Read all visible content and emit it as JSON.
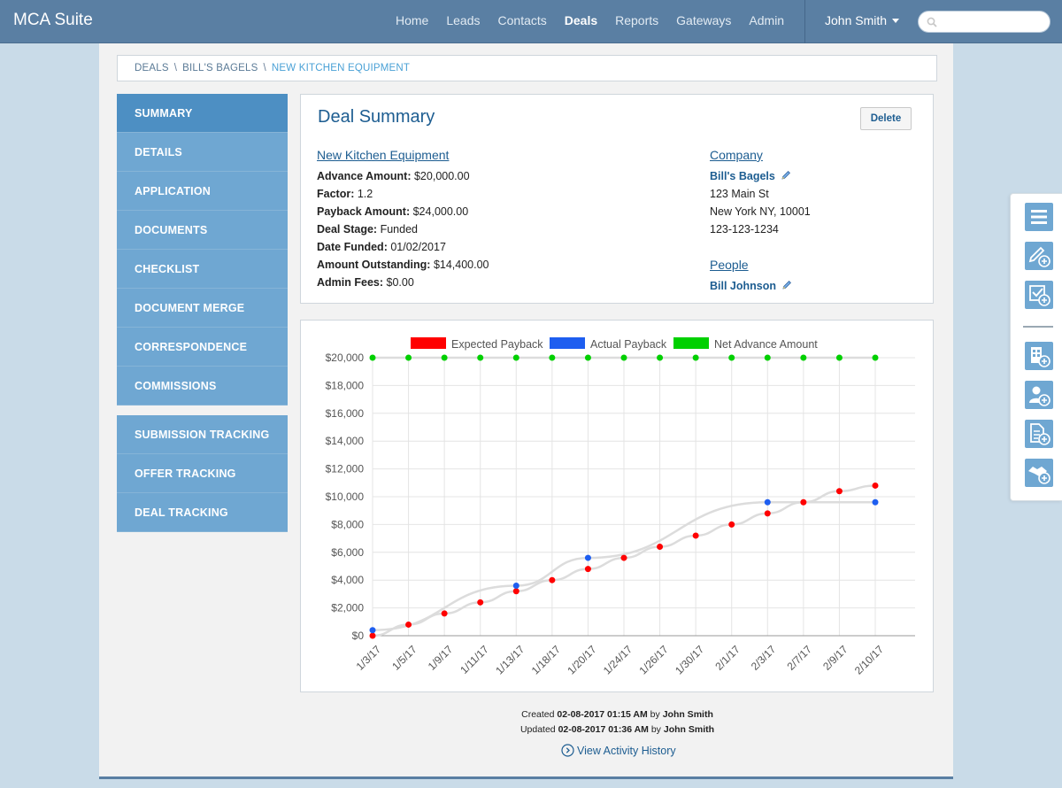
{
  "app": {
    "title": "MCA Suite"
  },
  "nav": {
    "items": [
      "Home",
      "Leads",
      "Contacts",
      "Deals",
      "Reports",
      "Gateways",
      "Admin"
    ],
    "active": "Deals",
    "user": "John Smith",
    "search_placeholder": ""
  },
  "breadcrumb": {
    "items": [
      "DEALS",
      "BILL'S BAGELS",
      "NEW KITCHEN EQUIPMENT"
    ],
    "separator": "\\"
  },
  "sidebar": {
    "group1": [
      "SUMMARY",
      "DETAILS",
      "APPLICATION",
      "DOCUMENTS",
      "CHECKLIST",
      "DOCUMENT MERGE",
      "CORRESPONDENCE",
      "COMMISSIONS"
    ],
    "group2": [
      "SUBMISSION TRACKING",
      "OFFER TRACKING",
      "DEAL TRACKING"
    ],
    "active": "SUMMARY"
  },
  "summary": {
    "title": "Deal Summary",
    "delete_label": "Delete",
    "deal_name": "New Kitchen Equipment",
    "fields": [
      {
        "label": "Advance Amount:",
        "value": "$20,000.00"
      },
      {
        "label": "Factor:",
        "value": "1.2"
      },
      {
        "label": "Payback Amount:",
        "value": "$24,000.00"
      },
      {
        "label": "Deal Stage:",
        "value": "Funded"
      },
      {
        "label": "Date Funded:",
        "value": "01/02/2017"
      },
      {
        "label": "Amount Outstanding:",
        "value": "$14,400.00"
      },
      {
        "label": "Admin Fees:",
        "value": "$0.00"
      }
    ],
    "company_heading": "Company",
    "company_name": "Bill's Bagels",
    "company_address1": "123 Main St",
    "company_address2": "New York NY, 10001",
    "company_phone": "123-123-1234",
    "people_heading": "People",
    "person_name": "Bill Johnson"
  },
  "chart_data": {
    "type": "line",
    "title": "",
    "xlabel": "",
    "ylabel": "",
    "categories": [
      "1/3/17",
      "1/5/17",
      "1/9/17",
      "1/11/17",
      "1/13/17",
      "1/18/17",
      "1/20/17",
      "1/24/17",
      "1/26/17",
      "1/30/17",
      "2/1/17",
      "2/3/17",
      "2/7/17",
      "2/9/17",
      "2/10/17"
    ],
    "ylim": [
      0,
      20000
    ],
    "yticks": [
      "$0",
      "$2,000",
      "$4,000",
      "$6,000",
      "$8,000",
      "$10,000",
      "$12,000",
      "$14,000",
      "$16,000",
      "$18,000",
      "$20,000"
    ],
    "legend_position": "top",
    "grid": true,
    "series": [
      {
        "name": "Expected Payback",
        "color": "#ff0000",
        "values": [
          0,
          800,
          1600,
          2400,
          3200,
          4000,
          4800,
          5600,
          6400,
          7200,
          8000,
          8800,
          9600,
          10400,
          10800
        ]
      },
      {
        "name": "Actual Payback",
        "color": "#1e5ef0",
        "values": [
          400,
          null,
          null,
          null,
          3600,
          null,
          5600,
          null,
          null,
          null,
          null,
          9600,
          null,
          null,
          9600
        ]
      },
      {
        "name": "Net Advance Amount",
        "color": "#00d000",
        "values": [
          20000,
          20000,
          20000,
          20000,
          20000,
          20000,
          20000,
          20000,
          20000,
          20000,
          20000,
          20000,
          20000,
          20000,
          20000
        ]
      }
    ]
  },
  "footer": {
    "created_prefix": "Created",
    "created_date": "02-08-2017 01:15 AM",
    "created_by_word": "by",
    "created_user": "John Smith",
    "updated_prefix": "Updated",
    "updated_date": "02-08-2017 01:36 AM",
    "updated_by_word": "by",
    "updated_user": "John Smith",
    "history_link": "View Activity History"
  },
  "tools": [
    "menu-icon",
    "new-note-icon",
    "new-task-icon",
    "new-company-icon",
    "new-contact-icon",
    "new-document-icon",
    "new-deal-icon"
  ],
  "colors": {
    "nav": "#5a7fa3",
    "sidebar": "#6fa7d2",
    "sidebar_active": "#4d8fc3",
    "link": "#1d5d91"
  }
}
